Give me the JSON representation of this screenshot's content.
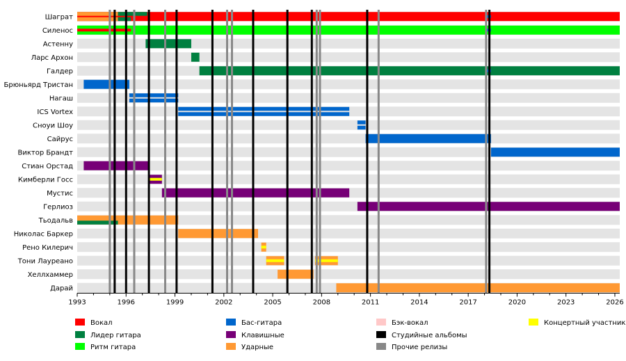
{
  "chart_data": {
    "type": "timeline",
    "x_axis": {
      "range": [
        1993,
        2026.3
      ],
      "ticks": [
        1993,
        1996,
        1999,
        2002,
        2005,
        2008,
        2011,
        2014,
        2017,
        2020,
        2023,
        2026
      ]
    },
    "members": [
      "Шаграт",
      "Силенос",
      "Астенну",
      "Ларс Архон",
      "Галдер",
      "Брюньярд Тристан",
      "Нагаш",
      "ICS Vortex",
      "Сноуи Шоу",
      "Сайрус",
      "Виктор Брандт",
      "Стиан Орстад",
      "Кимберли Госс",
      "Мустис",
      "Герлиоз",
      "Тьодальв",
      "Николас Баркер",
      "Рено Килерич",
      "Тони Лауреано",
      "Хеллхаммер",
      "Дарай"
    ],
    "roles": {
      "vocals": {
        "label": "Вокал",
        "color": "#ff0000"
      },
      "lead": {
        "label": "Лидер гитара",
        "color": "#008040"
      },
      "rhythm": {
        "label": "Ритм гитара",
        "color": "#00ff00"
      },
      "bass": {
        "label": "Бас-гитара",
        "color": "#0066cc"
      },
      "keys": {
        "label": "Клавишные",
        "color": "#770077"
      },
      "drums": {
        "label": "Ударные",
        "color": "#ff9933"
      },
      "backing": {
        "label": "Бэк-вокал",
        "color": "#ffc8c8"
      },
      "studio": {
        "label": "Студийные альбомы",
        "color": "#000000"
      },
      "other": {
        "label": "Прочие релизы",
        "color": "#888888"
      },
      "live": {
        "label": "Концертный участник",
        "color": "#ffff00"
      }
    },
    "legend_order": [
      [
        "vocals",
        "lead",
        "rhythm"
      ],
      [
        "bass",
        "keys",
        "drums"
      ],
      [
        "backing",
        "studio",
        "other"
      ],
      [
        "live"
      ]
    ],
    "bars": [
      {
        "member": 0,
        "role": "vocals",
        "start": 1993.0,
        "end": 2026.3,
        "part": "full"
      },
      {
        "member": 0,
        "role": "drums",
        "start": 1993.0,
        "end": 1995.5,
        "part": "top"
      },
      {
        "member": 0,
        "role": "lead",
        "start": 1995.5,
        "end": 1997.3,
        "part": "top"
      },
      {
        "member": 0,
        "role": "drums",
        "start": 1993.0,
        "end": 1995.5,
        "part": "bottom"
      },
      {
        "member": 0,
        "role": "lead",
        "start": 1995.5,
        "end": 1996.3,
        "part": "bottom"
      },
      {
        "member": 0,
        "role": "bass",
        "start": 2018.1,
        "end": 2018.4,
        "part": "mid"
      },
      {
        "member": 1,
        "role": "rhythm",
        "start": 1993.0,
        "end": 2026.3,
        "part": "full"
      },
      {
        "member": 1,
        "role": "vocals",
        "start": 1993.0,
        "end": 1996.3,
        "part": "mid"
      },
      {
        "member": 1,
        "role": "bass",
        "start": 2018.1,
        "end": 2018.4,
        "part": "mid"
      },
      {
        "member": 2,
        "role": "lead",
        "start": 1997.2,
        "end": 2000.0,
        "part": "full"
      },
      {
        "member": 3,
        "role": "lead",
        "start": 2000.0,
        "end": 2000.5,
        "part": "full"
      },
      {
        "member": 4,
        "role": "lead",
        "start": 2000.5,
        "end": 2026.3,
        "part": "full"
      },
      {
        "member": 4,
        "role": "bass",
        "start": 2018.1,
        "end": 2018.4,
        "part": "mid"
      },
      {
        "member": 5,
        "role": "bass",
        "start": 1993.4,
        "end": 1996.2,
        "part": "full"
      },
      {
        "member": 6,
        "role": "bass",
        "start": 1996.2,
        "end": 1999.2,
        "part": "top"
      },
      {
        "member": 6,
        "role": "bass",
        "start": 1996.2,
        "end": 1999.2,
        "part": "bottom"
      },
      {
        "member": 7,
        "role": "bass",
        "start": 1999.2,
        "end": 2009.7,
        "part": "top"
      },
      {
        "member": 7,
        "role": "bass",
        "start": 1999.2,
        "end": 2009.7,
        "part": "bottom"
      },
      {
        "member": 8,
        "role": "bass",
        "start": 2010.2,
        "end": 2010.7,
        "part": "top"
      },
      {
        "member": 8,
        "role": "bass",
        "start": 2010.2,
        "end": 2010.7,
        "part": "bottom"
      },
      {
        "member": 9,
        "role": "bass",
        "start": 2010.7,
        "end": 2018.4,
        "part": "full"
      },
      {
        "member": 10,
        "role": "bass",
        "start": 2018.4,
        "end": 2026.3,
        "part": "full"
      },
      {
        "member": 11,
        "role": "keys",
        "start": 1993.4,
        "end": 1997.4,
        "part": "full"
      },
      {
        "member": 12,
        "role": "keys",
        "start": 1997.4,
        "end": 1998.2,
        "part": "full"
      },
      {
        "member": 12,
        "role": "live",
        "start": 1997.4,
        "end": 1998.2,
        "part": "mid"
      },
      {
        "member": 13,
        "role": "keys",
        "start": 1998.2,
        "end": 2009.7,
        "part": "full"
      },
      {
        "member": 14,
        "role": "keys",
        "start": 2010.2,
        "end": 2026.3,
        "part": "full"
      },
      {
        "member": 15,
        "role": "drums",
        "start": 1993.0,
        "end": 1999.2,
        "part": "full"
      },
      {
        "member": 15,
        "role": "lead",
        "start": 1993.0,
        "end": 1995.5,
        "part": "bottom"
      },
      {
        "member": 16,
        "role": "drums",
        "start": 1999.2,
        "end": 2004.1,
        "part": "full"
      },
      {
        "member": 17,
        "role": "drums",
        "start": 2004.3,
        "end": 2004.6,
        "part": "full"
      },
      {
        "member": 17,
        "role": "live",
        "start": 2004.3,
        "end": 2004.6,
        "part": "mid"
      },
      {
        "member": 18,
        "role": "drums",
        "start": 2004.6,
        "end": 2005.7,
        "part": "full"
      },
      {
        "member": 18,
        "role": "live",
        "start": 2004.6,
        "end": 2005.7,
        "part": "mid"
      },
      {
        "member": 18,
        "role": "drums",
        "start": 2007.6,
        "end": 2009.0,
        "part": "full"
      },
      {
        "member": 18,
        "role": "live",
        "start": 2007.6,
        "end": 2009.0,
        "part": "mid"
      },
      {
        "member": 19,
        "role": "drums",
        "start": 2005.3,
        "end": 2007.5,
        "part": "full"
      },
      {
        "member": 20,
        "role": "drums",
        "start": 2008.9,
        "end": 2026.3,
        "part": "full"
      }
    ],
    "release_lines": {
      "studio": [
        1995.3,
        1996.0,
        1997.4,
        1999.1,
        2001.3,
        2003.8,
        2005.9,
        2007.4,
        2010.8,
        2018.3
      ],
      "other": [
        1995.0,
        1996.5,
        1998.4,
        2002.2,
        2002.5,
        2007.7,
        2007.9,
        2011.5,
        2018.1
      ]
    }
  }
}
